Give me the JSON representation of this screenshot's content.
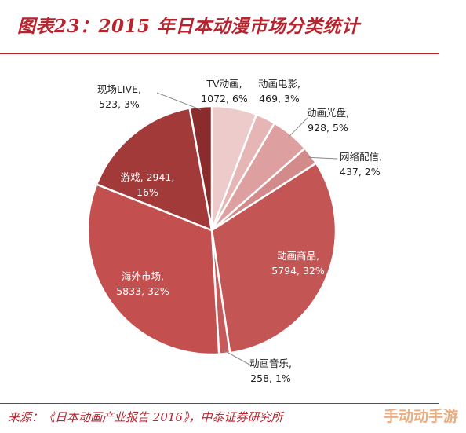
{
  "header": {
    "title": "图表23：2015 年日本动漫市场分类统计"
  },
  "footer": {
    "source": "来源：《日本动画产业报告 2016》，中泰证券研究所"
  },
  "watermark": {
    "text": "手动动手游"
  },
  "chart_data": {
    "type": "pie",
    "title": "图表23：2015 年日本动漫市场分类统计",
    "slices": [
      {
        "name": "TV动画",
        "value": 1072,
        "percent": "6%",
        "color": "#eecbcb",
        "label_line1": "TV动画,",
        "label_line2": "1072, 6%"
      },
      {
        "name": "动画电影",
        "value": 469,
        "percent": "3%",
        "color": "#e6b6b6",
        "label_line1": "动画电影,",
        "label_line2": "469, 3%"
      },
      {
        "name": "动画光盘",
        "value": 928,
        "percent": "5%",
        "color": "#dd9f9f",
        "label_line1": "动画光盘,",
        "label_line2": "928, 5%"
      },
      {
        "name": "网络配信",
        "value": 437,
        "percent": "2%",
        "color": "#d38a8a",
        "label_line1": "网络配信,",
        "label_line2": "437, 2%"
      },
      {
        "name": "动画商品",
        "value": 5794,
        "percent": "32%",
        "color": "#c45555",
        "label_line1": "动画商品,",
        "label_line2": "5794, 32%"
      },
      {
        "name": "动画音乐",
        "value": 258,
        "percent": "1%",
        "color": "#c65a5a",
        "label_line1": "动画音乐,",
        "label_line2": "258, 1%"
      },
      {
        "name": "海外市场",
        "value": 5833,
        "percent": "32%",
        "color": "#c44f4f",
        "label_line1": "海外市场,",
        "label_line2": "5833, 32%"
      },
      {
        "name": "游戏",
        "value": 2941,
        "percent": "16%",
        "color": "#a23a3a",
        "label_line1": "游戏, 2941,",
        "label_line2": "16%"
      },
      {
        "name": "现场LIVE",
        "value": 523,
        "percent": "3%",
        "color": "#8a2c2c",
        "label_line1": "现场LIVE,",
        "label_line2": "523, 3%"
      }
    ]
  }
}
